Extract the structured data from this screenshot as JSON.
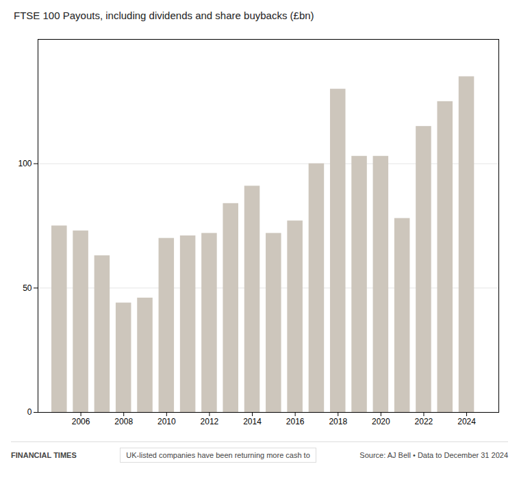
{
  "chart_data": {
    "type": "bar",
    "title": "FTSE 100 Payouts, including dividends and share buybacks (£bn)",
    "x": [
      2005,
      2006,
      2007,
      2008,
      2009,
      2010,
      2011,
      2012,
      2013,
      2014,
      2015,
      2016,
      2017,
      2018,
      2019,
      2020,
      2021,
      2022,
      2023,
      2024
    ],
    "values": [
      75,
      73,
      63,
      44,
      46,
      70,
      71,
      72,
      84,
      91,
      72,
      77,
      100,
      130,
      103,
      103,
      78,
      115,
      125,
      135
    ],
    "color": "#cdc6bc",
    "xlim": [
      2004.0,
      2025.5
    ],
    "xticks": [
      2006,
      2008,
      2010,
      2012,
      2014,
      2016,
      2018,
      2020,
      2022,
      2024
    ],
    "ylim": [
      0,
      150
    ],
    "yticks": [
      0,
      50,
      100
    ],
    "grid": true,
    "annotations": [
      "FINANCIAL TIMES",
      "UK-listed companies have been returning more cash to",
      "Source: AJ Bell • Data to December 31 2024"
    ]
  }
}
